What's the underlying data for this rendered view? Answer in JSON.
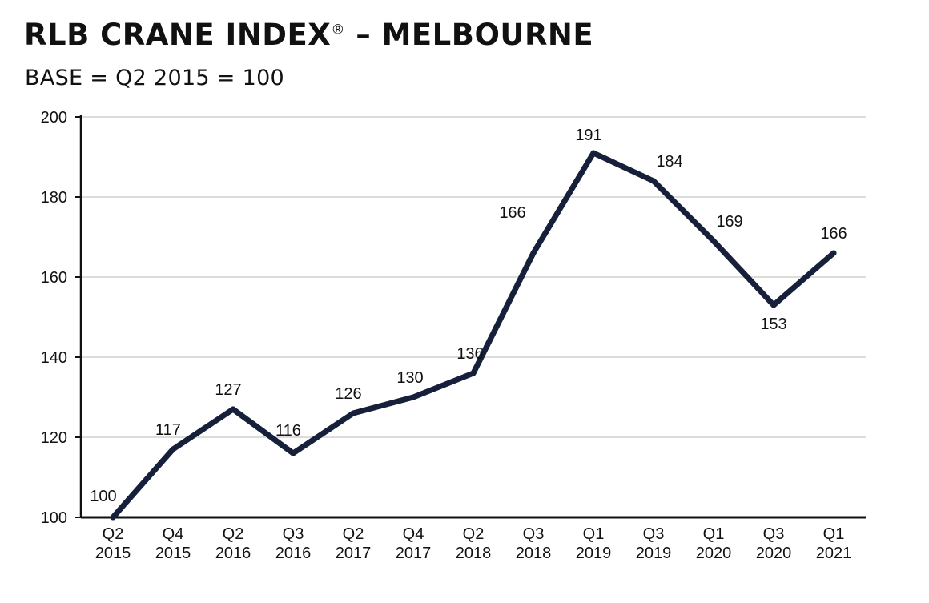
{
  "chart_data": {
    "type": "line",
    "title": "RLB CRANE INDEX",
    "title_mark": "®",
    "title_suffix": " – MELBOURNE",
    "subtitle": "BASE = Q2 2015 = 100",
    "xlabel": "",
    "ylabel": "",
    "categories": [
      [
        "Q2",
        "2015"
      ],
      [
        "Q4",
        "2015"
      ],
      [
        "Q2",
        "2016"
      ],
      [
        "Q3",
        "2016"
      ],
      [
        "Q2",
        "2017"
      ],
      [
        "Q4",
        "2017"
      ],
      [
        "Q2",
        "2018"
      ],
      [
        "Q3",
        "2018"
      ],
      [
        "Q1",
        "2019"
      ],
      [
        "Q3",
        "2019"
      ],
      [
        "Q1",
        "2020"
      ],
      [
        "Q3",
        "2020"
      ],
      [
        "Q1",
        "2021"
      ]
    ],
    "series": [
      {
        "values": [
          100,
          117,
          127,
          116,
          126,
          130,
          136,
          166,
          191,
          184,
          169,
          153,
          166
        ]
      }
    ],
    "data_labels": [
      "100",
      "117",
      "127",
      "116",
      "126",
      "130",
      "136",
      "166",
      "191",
      "184",
      "169",
      "153",
      "166"
    ],
    "ylim": [
      100,
      200
    ],
    "yticks": [
      100,
      120,
      140,
      160,
      180,
      200
    ],
    "grid": true,
    "line_color": "#17203a",
    "grid_color": "#c8c8c8",
    "axis_color": "#111111"
  }
}
